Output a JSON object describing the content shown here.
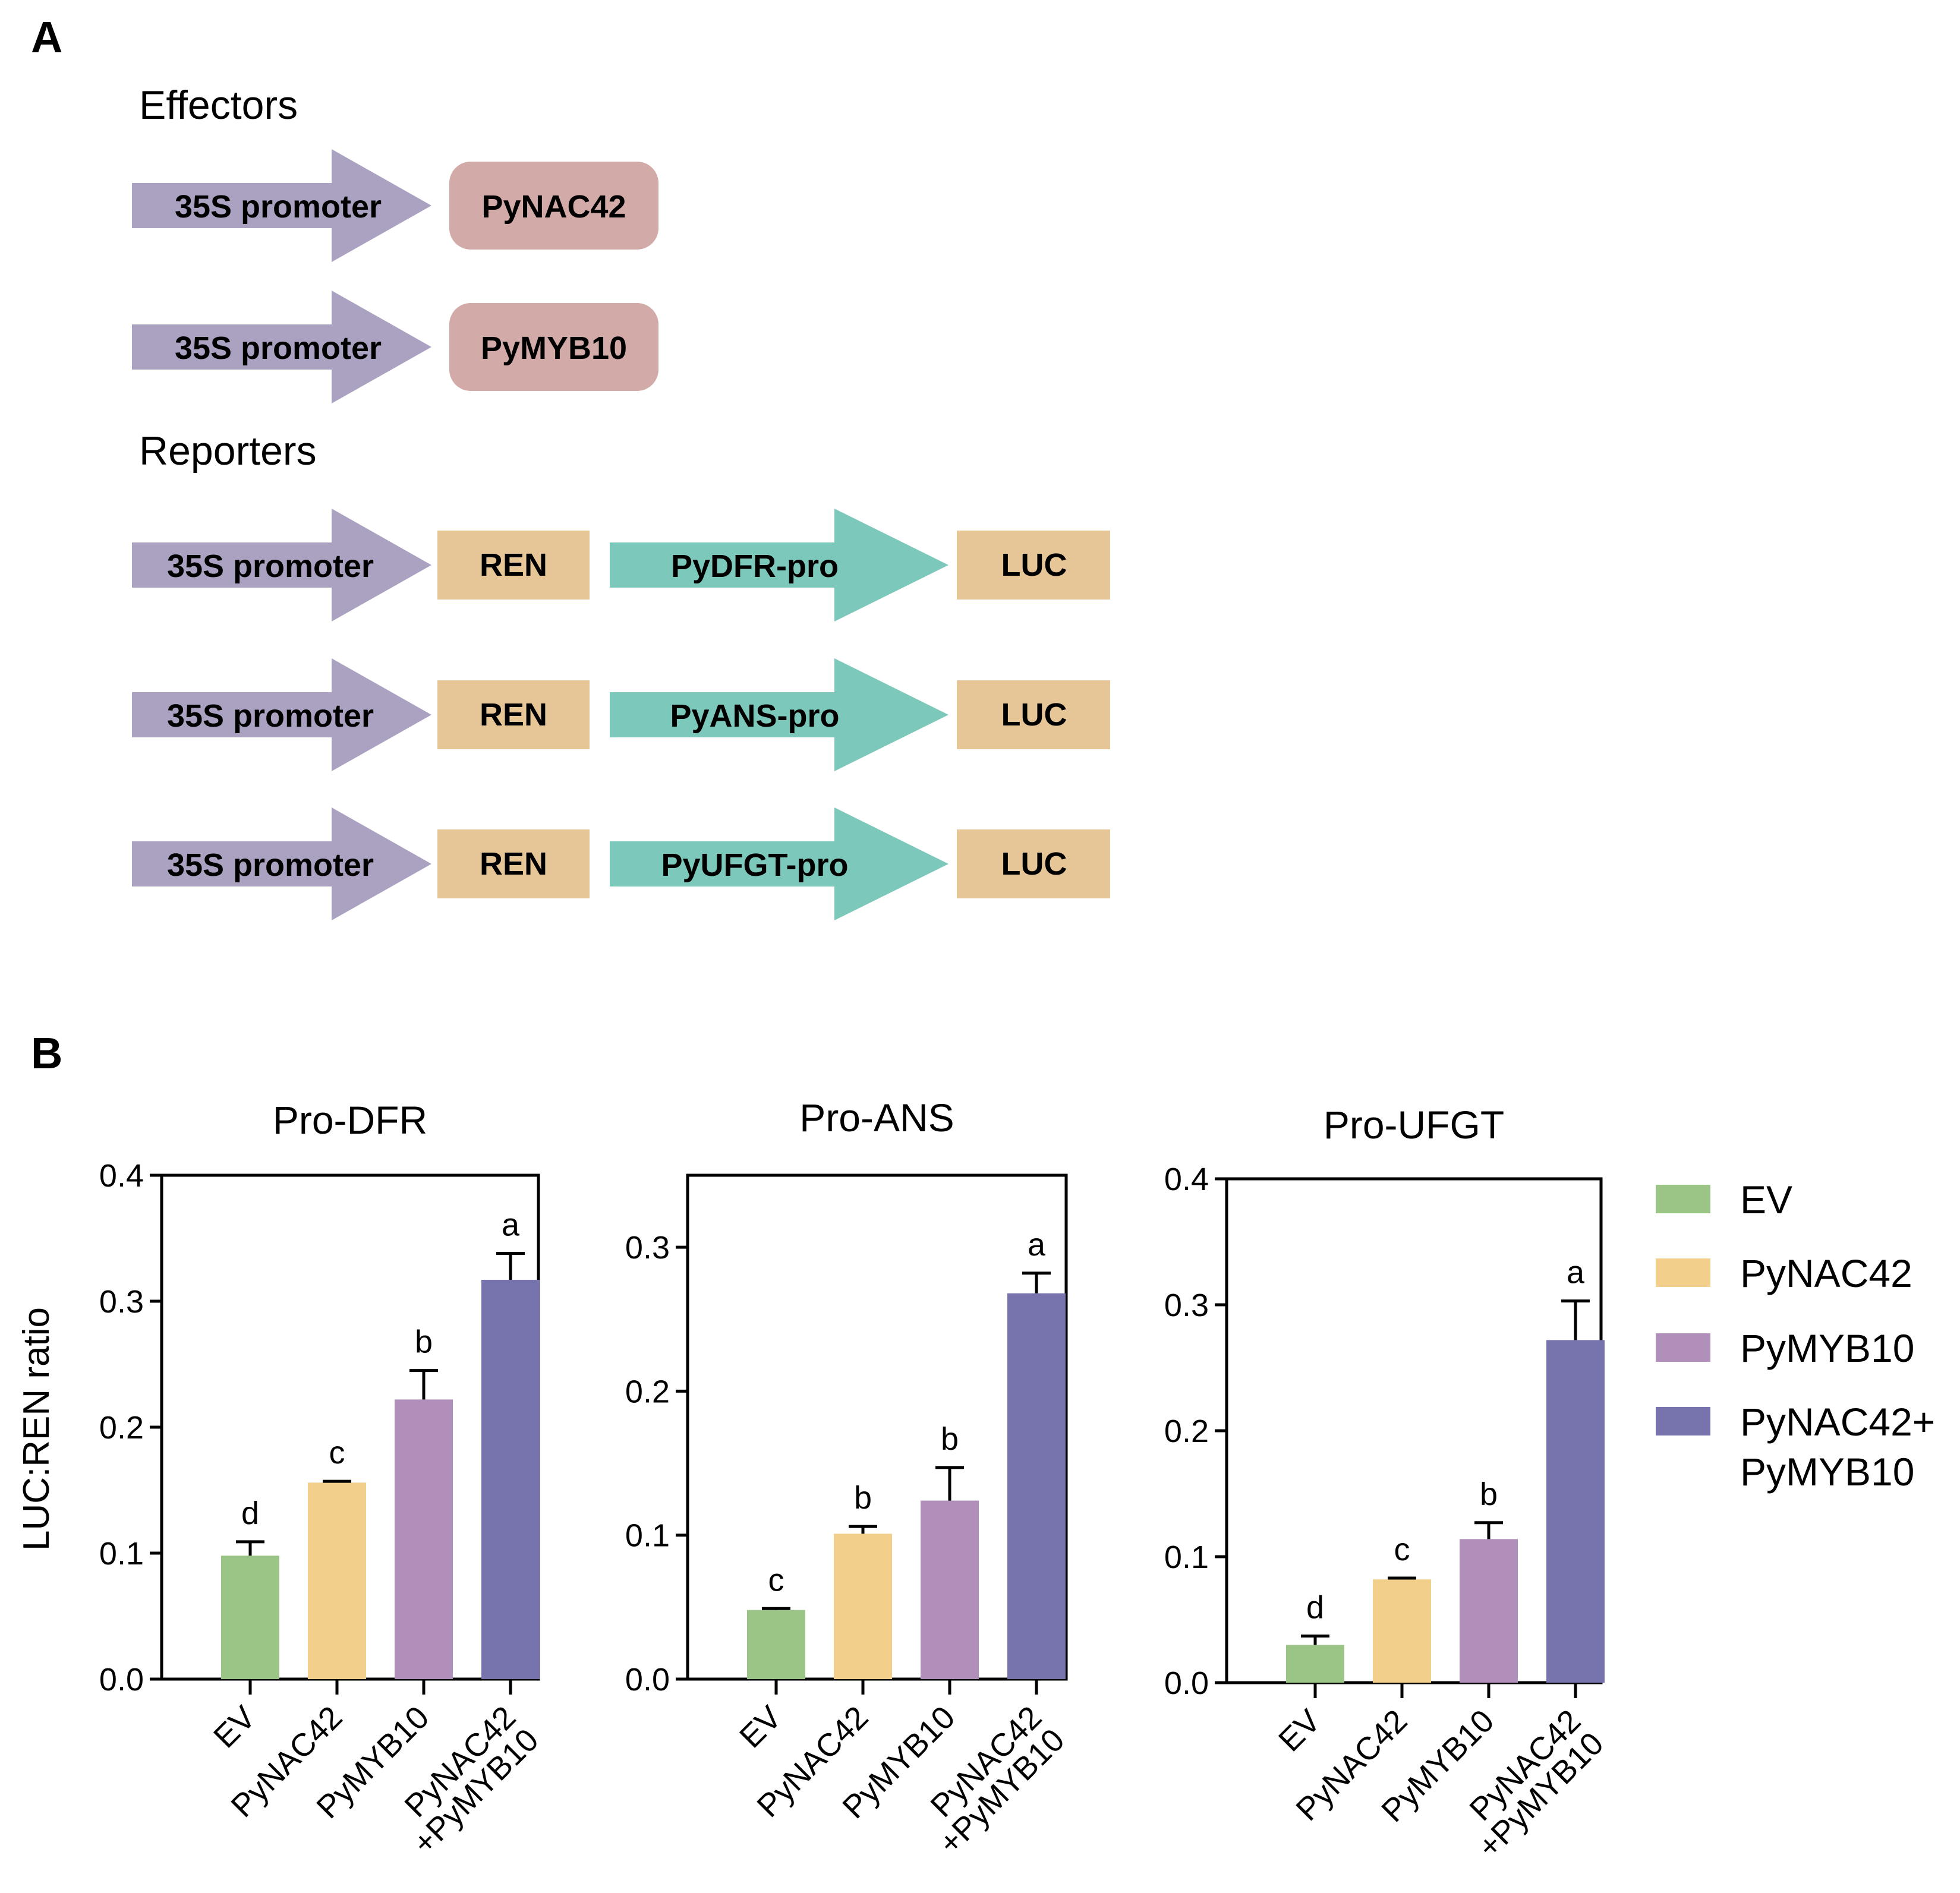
{
  "panel_a": {
    "label": "A",
    "effectors_heading": "Effectors",
    "reporters_heading": "Reporters",
    "colors": {
      "promoter_35s": "#aba2c2",
      "effector_box": "#d2aaa8",
      "reporter_box": "#e6c596",
      "gene_promoter": "#7cc8bb"
    },
    "effectors": [
      {
        "promoter": "35S promoter",
        "gene": "PyNAC42"
      },
      {
        "promoter": "35S promoter",
        "gene": "PyMYB10"
      }
    ],
    "reporters": [
      {
        "promoter": "35S promoter",
        "ref": "REN",
        "gene_promoter": "PyDFR-pro",
        "reporter": "LUC"
      },
      {
        "promoter": "35S promoter",
        "ref": "REN",
        "gene_promoter": "PyANS-pro",
        "reporter": "LUC"
      },
      {
        "promoter": "35S promoter",
        "ref": "REN",
        "gene_promoter": "PyUFGT-pro",
        "reporter": "LUC"
      }
    ]
  },
  "panel_b": {
    "label": "B",
    "ylabel": "LUC:REN ratio",
    "legend": {
      "placement": "right",
      "entries": [
        {
          "lines": [
            "EV"
          ],
          "color": "#9bc586"
        },
        {
          "lines": [
            "PyNAC42"
          ],
          "color": "#f2d08c"
        },
        {
          "lines": [
            "PyMYB10"
          ],
          "color": "#b08fba"
        },
        {
          "lines": [
            "PyNAC42+",
            "PyMYB10"
          ],
          "color": "#7774ad"
        }
      ]
    }
  },
  "chart_data": [
    {
      "type": "bar",
      "title": "Pro-DFR",
      "ylabel": "LUC:REN ratio",
      "ylim": [
        0,
        0.4
      ],
      "yticks": [
        "0.0",
        "0.1",
        "0.2",
        "0.3",
        "0.4"
      ],
      "categories": [
        [
          "EV"
        ],
        [
          "PyNAC42"
        ],
        [
          "PyMYB10"
        ],
        [
          "PyNAC42",
          "+PyMYB10"
        ]
      ],
      "values": [
        0.098,
        0.156,
        0.222,
        0.317
      ],
      "errors": [
        0.011,
        0.001,
        0.023,
        0.021
      ],
      "letters": [
        "d",
        "c",
        "b",
        "a"
      ],
      "colors": [
        "#9bc586",
        "#f2d08c",
        "#b08fba",
        "#7774ad"
      ]
    },
    {
      "type": "bar",
      "title": "Pro-ANS",
      "ylabel": "",
      "ylim": [
        0,
        0.35
      ],
      "yticks": [
        "0.0",
        "0.1",
        "0.2",
        "0.3"
      ],
      "categories": [
        [
          "EV"
        ],
        [
          "PyNAC42"
        ],
        [
          "PyMYB10"
        ],
        [
          "PyNAC42",
          "+PyMYB10"
        ]
      ],
      "values": [
        0.048,
        0.101,
        0.124,
        0.268
      ],
      "errors": [
        0.001,
        0.005,
        0.023,
        0.014
      ],
      "letters": [
        "c",
        "b",
        "b",
        "a"
      ],
      "colors": [
        "#9bc586",
        "#f2d08c",
        "#b08fba",
        "#7774ad"
      ]
    },
    {
      "type": "bar",
      "title": "Pro-UFGT",
      "ylabel": "",
      "ylim": [
        0,
        0.4
      ],
      "yticks": [
        "0.0",
        "0.1",
        "0.2",
        "0.3",
        "0.4"
      ],
      "categories": [
        [
          "EV"
        ],
        [
          "PyNAC42"
        ],
        [
          "PyMYB10"
        ],
        [
          "PyNAC42",
          "+PyMYB10"
        ]
      ],
      "values": [
        0.03,
        0.082,
        0.114,
        0.272
      ],
      "errors": [
        0.007,
        0.001,
        0.013,
        0.031
      ],
      "letters": [
        "d",
        "c",
        "b",
        "a"
      ],
      "colors": [
        "#9bc586",
        "#f2d08c",
        "#b08fba",
        "#7774ad"
      ]
    }
  ]
}
